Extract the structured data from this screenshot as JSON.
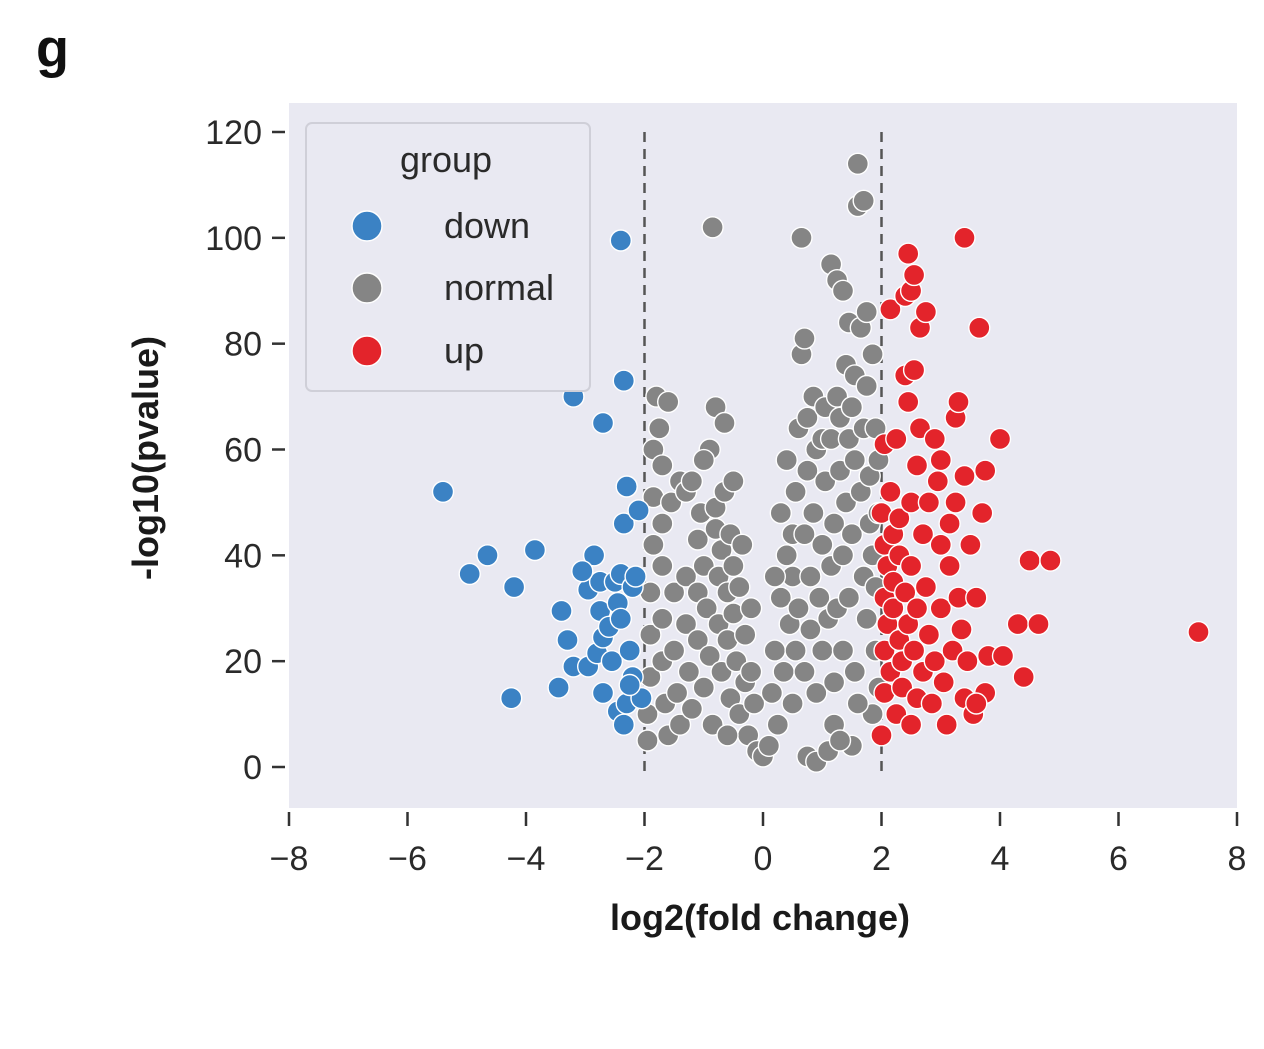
{
  "panel_label": "g",
  "colors": {
    "plot_background": "#e9e9f2",
    "down": "#3b82c4",
    "normal": "#858585",
    "up": "#e3242b",
    "threshold_line": "#555555"
  },
  "chart_data": {
    "type": "scatter",
    "title": "",
    "xlabel": "log2(fold change)",
    "ylabel": "-log10(pvalue)",
    "xlim": [
      -8,
      8
    ],
    "ylim": [
      -8,
      124
    ],
    "xticks": [
      -8,
      -6,
      -4,
      -2,
      0,
      2,
      4,
      6,
      8
    ],
    "xtick_labels": [
      "−8",
      "−6",
      "−4",
      "−2",
      "0",
      "2",
      "4",
      "6",
      "8"
    ],
    "yticks": [
      0,
      20,
      40,
      60,
      80,
      100,
      120
    ],
    "ytick_labels": [
      "0",
      "20",
      "40",
      "60",
      "80",
      "100",
      "120"
    ],
    "grid": false,
    "threshold_lines_x": [
      -2,
      2
    ],
    "legend": {
      "title": "group",
      "placement": "top-left",
      "entries": [
        "down",
        "normal",
        "up"
      ]
    },
    "series": [
      {
        "name": "down",
        "color": "#3b82c4",
        "points": [
          [
            -5.4,
            52
          ],
          [
            -4.95,
            36.5
          ],
          [
            -4.65,
            40
          ],
          [
            -4.2,
            34
          ],
          [
            -4.25,
            13
          ],
          [
            -3.85,
            41
          ],
          [
            -3.4,
            29.5
          ],
          [
            -3.45,
            15
          ],
          [
            -3.3,
            24
          ],
          [
            -3.2,
            19
          ],
          [
            -3.2,
            70
          ],
          [
            -3.1,
            98.5
          ],
          [
            -2.95,
            33.5
          ],
          [
            -2.95,
            19
          ],
          [
            -2.85,
            40
          ],
          [
            -2.8,
            21.5
          ],
          [
            -2.75,
            29.5
          ],
          [
            -2.75,
            35
          ],
          [
            -2.7,
            24.5
          ],
          [
            -2.7,
            65
          ],
          [
            -2.7,
            14
          ],
          [
            -2.6,
            26.5
          ],
          [
            -2.55,
            20
          ],
          [
            -2.5,
            35
          ],
          [
            -2.45,
            31
          ],
          [
            -2.4,
            36.5
          ],
          [
            -2.45,
            10.5
          ],
          [
            -2.35,
            8
          ],
          [
            -2.35,
            73
          ],
          [
            -2.4,
            99.5
          ],
          [
            -2.3,
            53
          ],
          [
            -2.35,
            46
          ],
          [
            -2.3,
            12
          ],
          [
            -2.25,
            22
          ],
          [
            -2.2,
            34
          ],
          [
            -2.2,
            17
          ],
          [
            -2.15,
            36
          ],
          [
            -2.1,
            48.5
          ],
          [
            -2.05,
            13
          ],
          [
            -2.4,
            28
          ],
          [
            -2.25,
            15.5
          ],
          [
            -3.05,
            37
          ]
        ]
      },
      {
        "name": "normal",
        "color": "#858585",
        "points": [
          [
            -1.95,
            5
          ],
          [
            -1.95,
            10
          ],
          [
            -1.9,
            17
          ],
          [
            -1.9,
            25
          ],
          [
            -1.9,
            33
          ],
          [
            -1.85,
            42
          ],
          [
            -1.85,
            51
          ],
          [
            -1.85,
            60
          ],
          [
            -1.8,
            70
          ],
          [
            -1.75,
            64
          ],
          [
            -1.7,
            57
          ],
          [
            -1.7,
            46
          ],
          [
            -1.7,
            38
          ],
          [
            -1.7,
            28
          ],
          [
            -1.7,
            20
          ],
          [
            -1.65,
            12
          ],
          [
            -1.6,
            6
          ],
          [
            -1.6,
            69
          ],
          [
            -1.55,
            50
          ],
          [
            -1.5,
            33
          ],
          [
            -1.5,
            22
          ],
          [
            -1.45,
            14
          ],
          [
            -1.4,
            8
          ],
          [
            -1.4,
            54
          ],
          [
            -1.3,
            52
          ],
          [
            -1.3,
            36
          ],
          [
            -1.3,
            27
          ],
          [
            -1.25,
            18
          ],
          [
            -1.2,
            11
          ],
          [
            -1.2,
            54
          ],
          [
            -1.1,
            43
          ],
          [
            -1.1,
            33
          ],
          [
            -1.1,
            24
          ],
          [
            -1.05,
            48
          ],
          [
            -1.0,
            15
          ],
          [
            -1.0,
            38
          ],
          [
            -0.95,
            30
          ],
          [
            -0.9,
            21
          ],
          [
            -0.9,
            60
          ],
          [
            -0.85,
            102
          ],
          [
            -0.85,
            8
          ],
          [
            -0.8,
            68
          ],
          [
            -0.8,
            45
          ],
          [
            -0.8,
            49
          ],
          [
            -0.75,
            36
          ],
          [
            -0.75,
            27
          ],
          [
            -0.7,
            18
          ],
          [
            -0.7,
            41
          ],
          [
            -0.65,
            65
          ],
          [
            -0.65,
            52
          ],
          [
            -0.6,
            33
          ],
          [
            -0.6,
            24
          ],
          [
            -0.55,
            13
          ],
          [
            -0.55,
            44
          ],
          [
            -0.5,
            54
          ],
          [
            -0.5,
            38
          ],
          [
            -0.5,
            29
          ],
          [
            -0.45,
            20
          ],
          [
            -0.4,
            10
          ],
          [
            -0.4,
            34
          ],
          [
            -0.35,
            42
          ],
          [
            -0.3,
            25
          ],
          [
            -0.3,
            16
          ],
          [
            -0.25,
            6
          ],
          [
            -0.2,
            30
          ],
          [
            -0.15,
            12
          ],
          [
            -0.1,
            3
          ],
          [
            0.0,
            2
          ],
          [
            0.1,
            4
          ],
          [
            0.15,
            14
          ],
          [
            0.2,
            22
          ],
          [
            0.25,
            8
          ],
          [
            0.3,
            32
          ],
          [
            0.3,
            48
          ],
          [
            0.35,
            18
          ],
          [
            0.4,
            40
          ],
          [
            0.4,
            58
          ],
          [
            0.45,
            27
          ],
          [
            0.5,
            12
          ],
          [
            0.5,
            44
          ],
          [
            0.5,
            36
          ],
          [
            0.55,
            52
          ],
          [
            0.55,
            22
          ],
          [
            0.6,
            64
          ],
          [
            0.6,
            30
          ],
          [
            0.65,
            100
          ],
          [
            0.65,
            78
          ],
          [
            0.7,
            81
          ],
          [
            0.7,
            18
          ],
          [
            0.7,
            44
          ],
          [
            0.75,
            56
          ],
          [
            0.75,
            66
          ],
          [
            0.75,
            2
          ],
          [
            0.8,
            36
          ],
          [
            0.8,
            26
          ],
          [
            0.85,
            70
          ],
          [
            0.85,
            48
          ],
          [
            0.9,
            60
          ],
          [
            0.9,
            14
          ],
          [
            0.9,
            1
          ],
          [
            0.95,
            32
          ],
          [
            1.0,
            62
          ],
          [
            1.0,
            42
          ],
          [
            1.0,
            22
          ],
          [
            1.05,
            54
          ],
          [
            1.05,
            68
          ],
          [
            1.1,
            28
          ],
          [
            1.1,
            3
          ],
          [
            1.15,
            95
          ],
          [
            1.15,
            38
          ],
          [
            1.15,
            62
          ],
          [
            1.2,
            46
          ],
          [
            1.2,
            16
          ],
          [
            1.25,
            70
          ],
          [
            1.25,
            92
          ],
          [
            1.25,
            30
          ],
          [
            1.3,
            56
          ],
          [
            1.3,
            66
          ],
          [
            1.35,
            90
          ],
          [
            1.35,
            40
          ],
          [
            1.35,
            22
          ],
          [
            1.4,
            76
          ],
          [
            1.4,
            50
          ],
          [
            1.45,
            84
          ],
          [
            1.45,
            62
          ],
          [
            1.45,
            32
          ],
          [
            1.5,
            68
          ],
          [
            1.5,
            44
          ],
          [
            1.5,
            4
          ],
          [
            1.55,
            74
          ],
          [
            1.55,
            58
          ],
          [
            1.55,
            18
          ],
          [
            1.6,
            114
          ],
          [
            1.6,
            106
          ],
          [
            1.65,
            83
          ],
          [
            1.65,
            52
          ],
          [
            1.7,
            107
          ],
          [
            1.7,
            36
          ],
          [
            1.7,
            64
          ],
          [
            1.75,
            86
          ],
          [
            1.75,
            72
          ],
          [
            1.75,
            28
          ],
          [
            1.8,
            46
          ],
          [
            1.8,
            55
          ],
          [
            1.85,
            78
          ],
          [
            1.85,
            40
          ],
          [
            1.85,
            10
          ],
          [
            1.9,
            64
          ],
          [
            1.9,
            34
          ],
          [
            1.9,
            22
          ],
          [
            1.95,
            48
          ],
          [
            1.95,
            58
          ],
          [
            1.95,
            15
          ],
          [
            -0.2,
            18
          ],
          [
            0.2,
            36
          ],
          [
            -0.6,
            6
          ],
          [
            1.2,
            8
          ],
          [
            1.6,
            12
          ],
          [
            -1.0,
            58
          ],
          [
            1.3,
            5
          ]
        ]
      },
      {
        "name": "up",
        "color": "#e3242b",
        "points": [
          [
            2.0,
            48
          ],
          [
            2.05,
            61
          ],
          [
            2.05,
            42
          ],
          [
            2.05,
            32
          ],
          [
            2.05,
            22
          ],
          [
            2.05,
            14
          ],
          [
            2.0,
            6
          ],
          [
            2.1,
            38
          ],
          [
            2.1,
            27
          ],
          [
            2.15,
            86.5
          ],
          [
            2.15,
            52
          ],
          [
            2.15,
            18
          ],
          [
            2.2,
            44
          ],
          [
            2.2,
            35
          ],
          [
            2.2,
            30
          ],
          [
            2.25,
            62
          ],
          [
            2.25,
            10
          ],
          [
            2.3,
            47
          ],
          [
            2.3,
            24
          ],
          [
            2.3,
            40
          ],
          [
            2.35,
            20
          ],
          [
            2.35,
            15
          ],
          [
            2.4,
            89
          ],
          [
            2.4,
            74
          ],
          [
            2.4,
            33
          ],
          [
            2.45,
            97
          ],
          [
            2.45,
            69
          ],
          [
            2.45,
            27
          ],
          [
            2.5,
            90
          ],
          [
            2.5,
            50
          ],
          [
            2.5,
            38
          ],
          [
            2.5,
            8
          ],
          [
            2.55,
            93
          ],
          [
            2.55,
            75
          ],
          [
            2.55,
            22
          ],
          [
            2.6,
            30
          ],
          [
            2.6,
            13
          ],
          [
            2.65,
            83
          ],
          [
            2.65,
            64
          ],
          [
            2.7,
            44
          ],
          [
            2.7,
            18
          ],
          [
            2.75,
            86
          ],
          [
            2.75,
            34
          ],
          [
            2.8,
            50
          ],
          [
            2.8,
            25
          ],
          [
            2.85,
            12
          ],
          [
            2.9,
            62
          ],
          [
            2.9,
            20
          ],
          [
            2.95,
            54
          ],
          [
            3.0,
            42
          ],
          [
            3.0,
            58
          ],
          [
            3.0,
            30
          ],
          [
            3.05,
            16
          ],
          [
            3.1,
            8
          ],
          [
            3.15,
            46
          ],
          [
            3.15,
            38
          ],
          [
            3.2,
            22
          ],
          [
            3.25,
            66
          ],
          [
            3.25,
            50
          ],
          [
            3.3,
            69
          ],
          [
            3.3,
            32
          ],
          [
            3.35,
            26
          ],
          [
            3.4,
            100
          ],
          [
            3.4,
            55
          ],
          [
            3.4,
            13
          ],
          [
            3.45,
            20
          ],
          [
            3.5,
            42
          ],
          [
            3.55,
            10
          ],
          [
            3.6,
            32
          ],
          [
            3.65,
            83
          ],
          [
            3.7,
            48
          ],
          [
            3.75,
            56
          ],
          [
            3.75,
            14
          ],
          [
            3.8,
            21
          ],
          [
            4.0,
            62
          ],
          [
            4.05,
            21
          ],
          [
            4.3,
            27
          ],
          [
            4.4,
            17
          ],
          [
            4.5,
            39
          ],
          [
            4.65,
            27
          ],
          [
            4.85,
            39
          ],
          [
            7.35,
            25.5
          ],
          [
            2.6,
            57
          ],
          [
            3.6,
            12
          ]
        ]
      }
    ]
  }
}
